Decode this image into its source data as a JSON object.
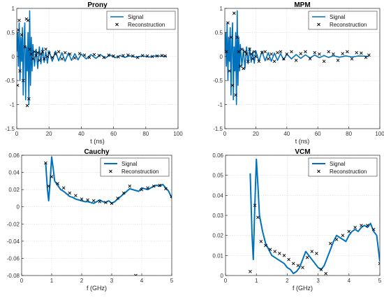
{
  "colors": {
    "signal": "#0072BD",
    "reconstruction": "#000000",
    "grid": "#dcdcdc",
    "axis": "#262626"
  },
  "chart_data": [
    {
      "type": "line",
      "title": "Prony",
      "xlabel": "t (ns)",
      "ylabel": "",
      "xlim": [
        0,
        100
      ],
      "ylim": [
        -1.5,
        1
      ],
      "xticks": [
        0,
        20,
        40,
        60,
        80,
        100
      ],
      "yticks": [
        -1.5,
        -1,
        -0.5,
        0,
        0.5,
        1
      ],
      "xtick_labels": [
        "0",
        "20",
        "40",
        "60",
        "80",
        "100"
      ],
      "ytick_labels": [
        "-1.5",
        "-1",
        "-0.5",
        "0",
        "0.5",
        "1"
      ],
      "grid": true,
      "legend_position": "top-right",
      "series": [
        {
          "name": "Signal",
          "style": "line",
          "x": [
            0,
            0.5,
            1,
            1.5,
            2,
            2.5,
            3,
            3.5,
            4,
            4.5,
            5,
            5.5,
            6,
            6.5,
            7,
            7.5,
            8,
            8.5,
            9,
            9.5,
            10,
            11,
            12,
            13,
            14,
            15,
            16,
            17,
            18,
            19,
            20,
            22,
            24,
            26,
            28,
            30,
            32,
            34,
            36,
            38,
            40,
            43,
            46,
            49,
            52,
            55,
            58,
            61,
            64,
            67,
            70,
            74,
            78,
            82,
            86,
            90,
            93
          ],
          "y": [
            0.1,
            0.5,
            -0.2,
            0.7,
            -0.5,
            0.4,
            -0.1,
            0.6,
            -0.8,
            0.3,
            0.7,
            -0.9,
            0.2,
            -0.3,
            0.5,
            -1.0,
            0.95,
            -0.6,
            0.4,
            -0.3,
            0.25,
            -0.2,
            0.15,
            -0.25,
            0.2,
            -0.15,
            0.18,
            -0.12,
            0.1,
            -0.14,
            0.12,
            -0.1,
            0.11,
            -0.09,
            0.08,
            -0.1,
            0.07,
            -0.08,
            0.06,
            -0.07,
            0.05,
            -0.05,
            0.04,
            -0.04,
            0.035,
            -0.03,
            0.03,
            -0.025,
            0.02,
            -0.02,
            0.015,
            -0.015,
            0.012,
            -0.01,
            0.01,
            0.008,
            0.0
          ]
        },
        {
          "name": "Reconstruction",
          "style": "marker",
          "x": [
            0.5,
            1,
            1.5,
            2,
            3,
            4,
            5,
            6,
            6.5,
            7,
            7.5,
            8,
            9,
            10,
            11,
            12,
            13,
            14,
            15,
            16,
            17,
            18,
            19,
            20,
            22,
            24,
            26,
            28,
            30,
            33,
            36,
            39,
            42,
            45,
            48,
            51,
            54,
            57,
            60,
            63,
            66,
            69,
            72,
            75,
            78,
            81,
            84,
            87,
            90,
            92
          ],
          "y": [
            -0.6,
            0.55,
            0.75,
            -0.3,
            0.45,
            -0.5,
            0.2,
            0.78,
            -1.02,
            0.75,
            -0.88,
            0.15,
            0.05,
            -0.05,
            0.1,
            0.02,
            0.08,
            -0.08,
            0.05,
            0.1,
            -0.05,
            0.15,
            0.0,
            0.07,
            -0.02,
            0.05,
            0.1,
            -0.05,
            0.08,
            0.05,
            -0.03,
            0.06,
            0.03,
            -0.02,
            0.04,
            0.02,
            -0.02,
            0.03,
            0.01,
            -0.01,
            0.02,
            0.03,
            0.01,
            -0.02,
            0.02,
            0.01,
            0.0,
            0.01,
            0.02,
            0.01
          ]
        }
      ]
    },
    {
      "type": "line",
      "title": "MPM",
      "xlabel": "t (ns)",
      "ylabel": "",
      "xlim": [
        0,
        100
      ],
      "ylim": [
        -1.5,
        1
      ],
      "xticks": [
        0,
        20,
        40,
        60,
        80,
        100
      ],
      "yticks": [
        -1.5,
        -1,
        -0.5,
        0,
        0.5,
        1
      ],
      "xtick_labels": [
        "0",
        "20",
        "40",
        "60",
        "80",
        "100"
      ],
      "ytick_labels": [
        "-1.5",
        "-1",
        "-0.5",
        "0",
        "0.5",
        "1"
      ],
      "grid": true,
      "legend_position": "top-right",
      "series": [
        {
          "name": "Signal",
          "style": "line",
          "x": [
            0,
            0.5,
            1,
            1.5,
            2,
            2.5,
            3,
            3.5,
            4,
            4.5,
            5,
            5.5,
            6,
            6.5,
            7,
            7.5,
            8,
            8.5,
            9,
            9.5,
            10,
            11,
            12,
            13,
            14,
            15,
            16,
            17,
            18,
            19,
            20,
            22,
            24,
            26,
            28,
            30,
            32,
            34,
            36,
            38,
            40,
            43,
            46,
            49,
            52,
            55,
            58,
            61,
            64,
            67,
            70,
            74,
            78,
            82,
            86,
            90,
            93
          ],
          "y": [
            0.1,
            0.5,
            -0.2,
            0.7,
            -0.5,
            0.4,
            -0.1,
            0.6,
            -0.8,
            0.3,
            0.7,
            -0.9,
            0.2,
            -0.3,
            0.5,
            -1.0,
            0.95,
            -0.6,
            0.4,
            -0.3,
            0.25,
            -0.2,
            0.15,
            -0.25,
            0.2,
            -0.15,
            0.18,
            -0.12,
            0.1,
            -0.14,
            0.12,
            -0.1,
            0.11,
            -0.09,
            0.08,
            -0.1,
            0.07,
            -0.08,
            0.06,
            -0.07,
            0.05,
            -0.05,
            0.04,
            -0.04,
            0.035,
            -0.03,
            0.03,
            -0.025,
            0.02,
            -0.02,
            0.015,
            -0.015,
            0.012,
            -0.01,
            0.01,
            0.008,
            0.0
          ]
        },
        {
          "name": "Reconstruction",
          "style": "marker",
          "x": [
            1,
            2,
            3,
            4,
            5,
            6,
            7,
            8,
            9,
            10,
            11,
            12,
            13,
            14,
            15,
            16,
            17,
            18,
            19,
            20,
            22,
            24,
            26,
            28,
            30,
            32,
            34,
            36,
            38,
            40,
            43,
            46,
            49,
            52,
            55,
            58,
            61,
            64,
            67,
            70,
            73,
            76,
            79,
            82,
            85,
            88,
            91,
            93
          ],
          "y": [
            0.1,
            0.7,
            -0.3,
            0.4,
            -0.6,
            0.9,
            -0.8,
            0.4,
            0.1,
            -0.2,
            0.15,
            -0.25,
            0.1,
            0.05,
            -0.1,
            0.15,
            0.05,
            -0.05,
            0.1,
            0.0,
            -0.1,
            0.08,
            0.1,
            -0.05,
            0.05,
            -0.1,
            0.08,
            0.1,
            -0.05,
            0.05,
            0.1,
            -0.08,
            0.06,
            0.1,
            -0.05,
            0.08,
            0.05,
            -0.1,
            0.1,
            0.05,
            -0.08,
            0.06,
            0.1,
            -0.05,
            0.08,
            0.07,
            -0.02,
            0.03
          ]
        }
      ]
    },
    {
      "type": "line",
      "title": "Cauchy",
      "xlabel": "f (GHz)",
      "ylabel": "",
      "xlim": [
        0,
        5
      ],
      "ylim": [
        -0.08,
        0.06
      ],
      "xticks": [
        0,
        1,
        2,
        3,
        4,
        5
      ],
      "yticks": [
        -0.08,
        -0.06,
        -0.04,
        -0.02,
        0,
        0.02,
        0.04,
        0.06
      ],
      "xtick_labels": [
        "0",
        "1",
        "2",
        "3",
        "4",
        "5"
      ],
      "ytick_labels": [
        "-0.08",
        "-0.06",
        "-0.04",
        "-0.02",
        "0",
        "0.02",
        "0.04",
        "0.06"
      ],
      "grid": true,
      "legend_position": "top-right",
      "series": [
        {
          "name": "Signal",
          "style": "line",
          "x": [
            0.8,
            0.86,
            0.9,
            0.95,
            1.0,
            1.05,
            1.1,
            1.2,
            1.3,
            1.4,
            1.5,
            1.6,
            1.7,
            1.8,
            1.9,
            2.0,
            2.1,
            2.2,
            2.3,
            2.4,
            2.5,
            2.6,
            2.7,
            2.8,
            2.9,
            3.0,
            3.1,
            3.2,
            3.3,
            3.4,
            3.5,
            3.6,
            3.7,
            3.8,
            3.9,
            4.0,
            4.1,
            4.2,
            4.3,
            4.4,
            4.5,
            4.6,
            4.7,
            4.8,
            4.9,
            5.0
          ],
          "y": [
            0.051,
            0.02,
            0.007,
            0.03,
            0.058,
            0.045,
            0.03,
            0.025,
            0.02,
            0.018,
            0.015,
            0.012,
            0.011,
            0.009,
            0.008,
            0.007,
            0.006,
            0.006,
            0.005,
            0.004,
            0.006,
            0.008,
            0.006,
            0.005,
            0.007,
            0.004,
            0.006,
            0.009,
            0.012,
            0.015,
            0.018,
            0.021,
            0.02,
            0.019,
            0.018,
            0.022,
            0.021,
            0.02,
            0.022,
            0.024,
            0.025,
            0.024,
            0.026,
            0.022,
            0.018,
            0.01
          ]
        },
        {
          "name": "Reconstruction",
          "style": "marker",
          "x": [
            0.8,
            0.9,
            1.0,
            1.2,
            1.4,
            1.6,
            1.8,
            2.0,
            2.2,
            2.4,
            2.6,
            2.8,
            3.0,
            3.2,
            3.4,
            3.6,
            3.8,
            4.0,
            4.2,
            4.4,
            4.6,
            4.8,
            5.0
          ],
          "y": [
            0.051,
            0.024,
            0.035,
            0.027,
            0.022,
            0.016,
            0.013,
            0.009,
            0.008,
            0.007,
            0.006,
            0.005,
            0.004,
            0.01,
            0.016,
            0.024,
            -0.08,
            0.02,
            0.022,
            0.024,
            0.025,
            0.021,
            0.012
          ]
        }
      ]
    },
    {
      "type": "line",
      "title": "VCM",
      "xlabel": "f (GHz)",
      "ylabel": "",
      "xlim": [
        0,
        5
      ],
      "ylim": [
        0,
        0.06
      ],
      "xticks": [
        0,
        1,
        2,
        3,
        4,
        5
      ],
      "yticks": [
        0,
        0.01,
        0.02,
        0.03,
        0.04,
        0.05,
        0.06
      ],
      "xtick_labels": [
        "0",
        "1",
        "2",
        "3",
        "4",
        "5"
      ],
      "ytick_labels": [
        "0",
        "0.01",
        "0.02",
        "0.03",
        "0.04",
        "0.05",
        "0.06"
      ],
      "grid": true,
      "legend_position": "top-right",
      "series": [
        {
          "name": "Signal",
          "style": "line",
          "x": [
            0.8,
            0.86,
            0.9,
            0.95,
            1.0,
            1.05,
            1.1,
            1.2,
            1.3,
            1.4,
            1.5,
            1.6,
            1.7,
            1.8,
            1.9,
            2.0,
            2.1,
            2.2,
            2.3,
            2.4,
            2.5,
            2.6,
            2.7,
            2.8,
            2.9,
            3.0,
            3.1,
            3.2,
            3.3,
            3.4,
            3.5,
            3.6,
            3.7,
            3.8,
            3.9,
            4.0,
            4.1,
            4.2,
            4.3,
            4.4,
            4.5,
            4.6,
            4.7,
            4.8,
            4.9,
            5.0
          ],
          "y": [
            0.051,
            0.02,
            0.008,
            0.035,
            0.058,
            0.045,
            0.03,
            0.022,
            0.016,
            0.013,
            0.01,
            0.009,
            0.008,
            0.007,
            0.006,
            0.004,
            0.003,
            0.001,
            0.002,
            0.004,
            0.008,
            0.012,
            0.01,
            0.008,
            0.006,
            0.004,
            0.003,
            0.005,
            0.009,
            0.013,
            0.017,
            0.02,
            0.019,
            0.018,
            0.017,
            0.02,
            0.022,
            0.023,
            0.022,
            0.024,
            0.025,
            0.024,
            0.026,
            0.022,
            0.02,
            0.007
          ]
        },
        {
          "name": "Reconstruction",
          "style": "marker",
          "x": [
            0.8,
            0.95,
            1.05,
            1.15,
            1.3,
            1.45,
            1.6,
            1.75,
            1.9,
            2.05,
            2.2,
            2.35,
            2.5,
            2.65,
            2.8,
            2.95,
            3.1,
            3.25,
            3.4,
            3.6,
            3.8,
            4.0,
            4.2,
            4.4,
            4.6,
            4.8,
            5.0
          ],
          "y": [
            0.002,
            0.035,
            0.029,
            0.017,
            0.015,
            0.013,
            0.012,
            0.011,
            0.01,
            0.008,
            0.006,
            0.005,
            0.004,
            0.009,
            0.012,
            0.011,
            0.003,
            0.001,
            0.016,
            0.018,
            0.02,
            0.022,
            0.024,
            0.025,
            0.025,
            0.023,
            0.006
          ]
        }
      ]
    }
  ]
}
